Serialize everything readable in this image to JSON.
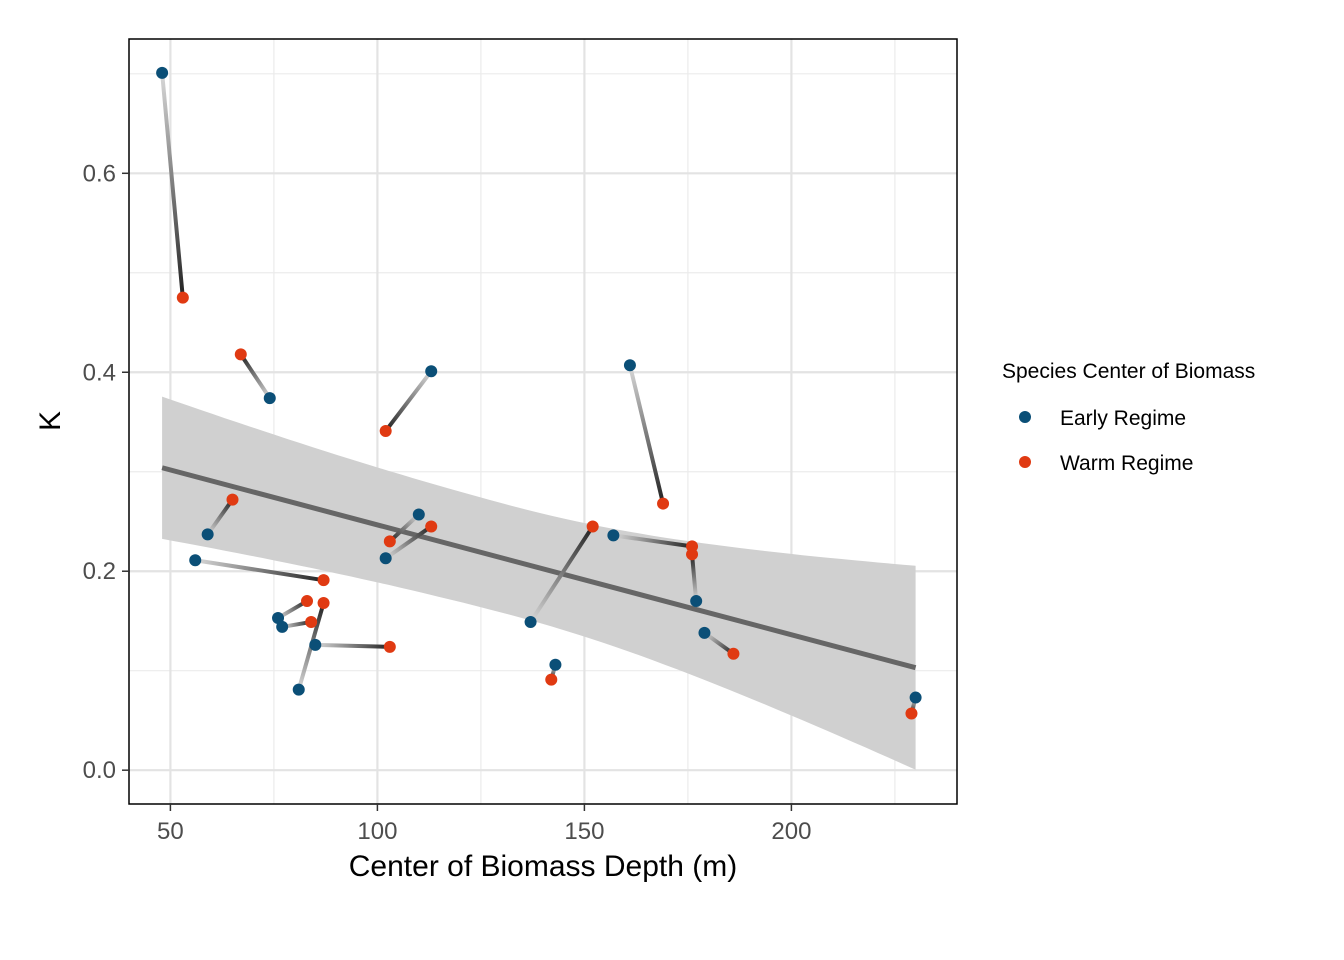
{
  "chart_data": {
    "type": "scatter",
    "title": "",
    "xlabel": "Center of Biomass Depth (m)",
    "ylabel": "K",
    "xlim": [
      40,
      240
    ],
    "ylim": [
      -0.034,
      0.735
    ],
    "x_ticks": [
      50,
      100,
      150,
      200
    ],
    "x_tick_labels": [
      "50",
      "100",
      "150",
      "200"
    ],
    "y_ticks": [
      0.0,
      0.2,
      0.4,
      0.6
    ],
    "y_tick_labels": [
      "0.0",
      "0.2",
      "0.4",
      "0.6"
    ],
    "grid": true,
    "legend": {
      "title": "Species Center of Biomass",
      "position": "right",
      "entries": [
        {
          "label": "Early Regime",
          "color": "#0b4f77"
        },
        {
          "label": "Warm Regime",
          "color": "#e03a12"
        }
      ]
    },
    "trend": {
      "type": "linear",
      "x_range": [
        48,
        230
      ],
      "y_start": 0.304,
      "y_end": 0.103,
      "ci_lower": [
        0.233,
        0.001
      ],
      "ci_upper": [
        0.376,
        0.206
      ],
      "color": "#666666",
      "band_color": "#d0d0d0"
    },
    "species_pairs": [
      {
        "early": [
          48,
          0.701
        ],
        "warm": [
          53,
          0.475
        ]
      },
      {
        "early": [
          74,
          0.374
        ],
        "warm": [
          67,
          0.418
        ]
      },
      {
        "early": [
          113,
          0.401
        ],
        "warm": [
          102,
          0.341
        ]
      },
      {
        "early": [
          161,
          0.407
        ],
        "warm": [
          169,
          0.268
        ]
      },
      {
        "early": [
          59,
          0.237
        ],
        "warm": [
          65,
          0.272
        ]
      },
      {
        "early": [
          110,
          0.257
        ],
        "warm": [
          103,
          0.23
        ]
      },
      {
        "early": [
          102,
          0.213
        ],
        "warm": [
          113,
          0.245
        ]
      },
      {
        "early": [
          157,
          0.236
        ],
        "warm": [
          176,
          0.225
        ]
      },
      {
        "early": [
          177,
          0.17
        ],
        "warm": [
          176,
          0.217
        ]
      },
      {
        "early": [
          137,
          0.149
        ],
        "warm": [
          152,
          0.245
        ]
      },
      {
        "early": [
          56,
          0.211
        ],
        "warm": [
          87,
          0.191
        ]
      },
      {
        "early": [
          76,
          0.153
        ],
        "warm": [
          83,
          0.17
        ]
      },
      {
        "early": [
          77,
          0.144
        ],
        "warm": [
          84,
          0.149
        ]
      },
      {
        "early": [
          85,
          0.126
        ],
        "warm": [
          103,
          0.124
        ]
      },
      {
        "early": [
          81,
          0.081
        ],
        "warm": [
          87,
          0.168
        ]
      },
      {
        "early": [
          179,
          0.138
        ],
        "warm": [
          186,
          0.117
        ]
      },
      {
        "early": [
          143,
          0.106
        ],
        "warm": [
          142,
          0.091
        ]
      },
      {
        "early": [
          230,
          0.073
        ],
        "warm": [
          229,
          0.057
        ]
      }
    ]
  }
}
